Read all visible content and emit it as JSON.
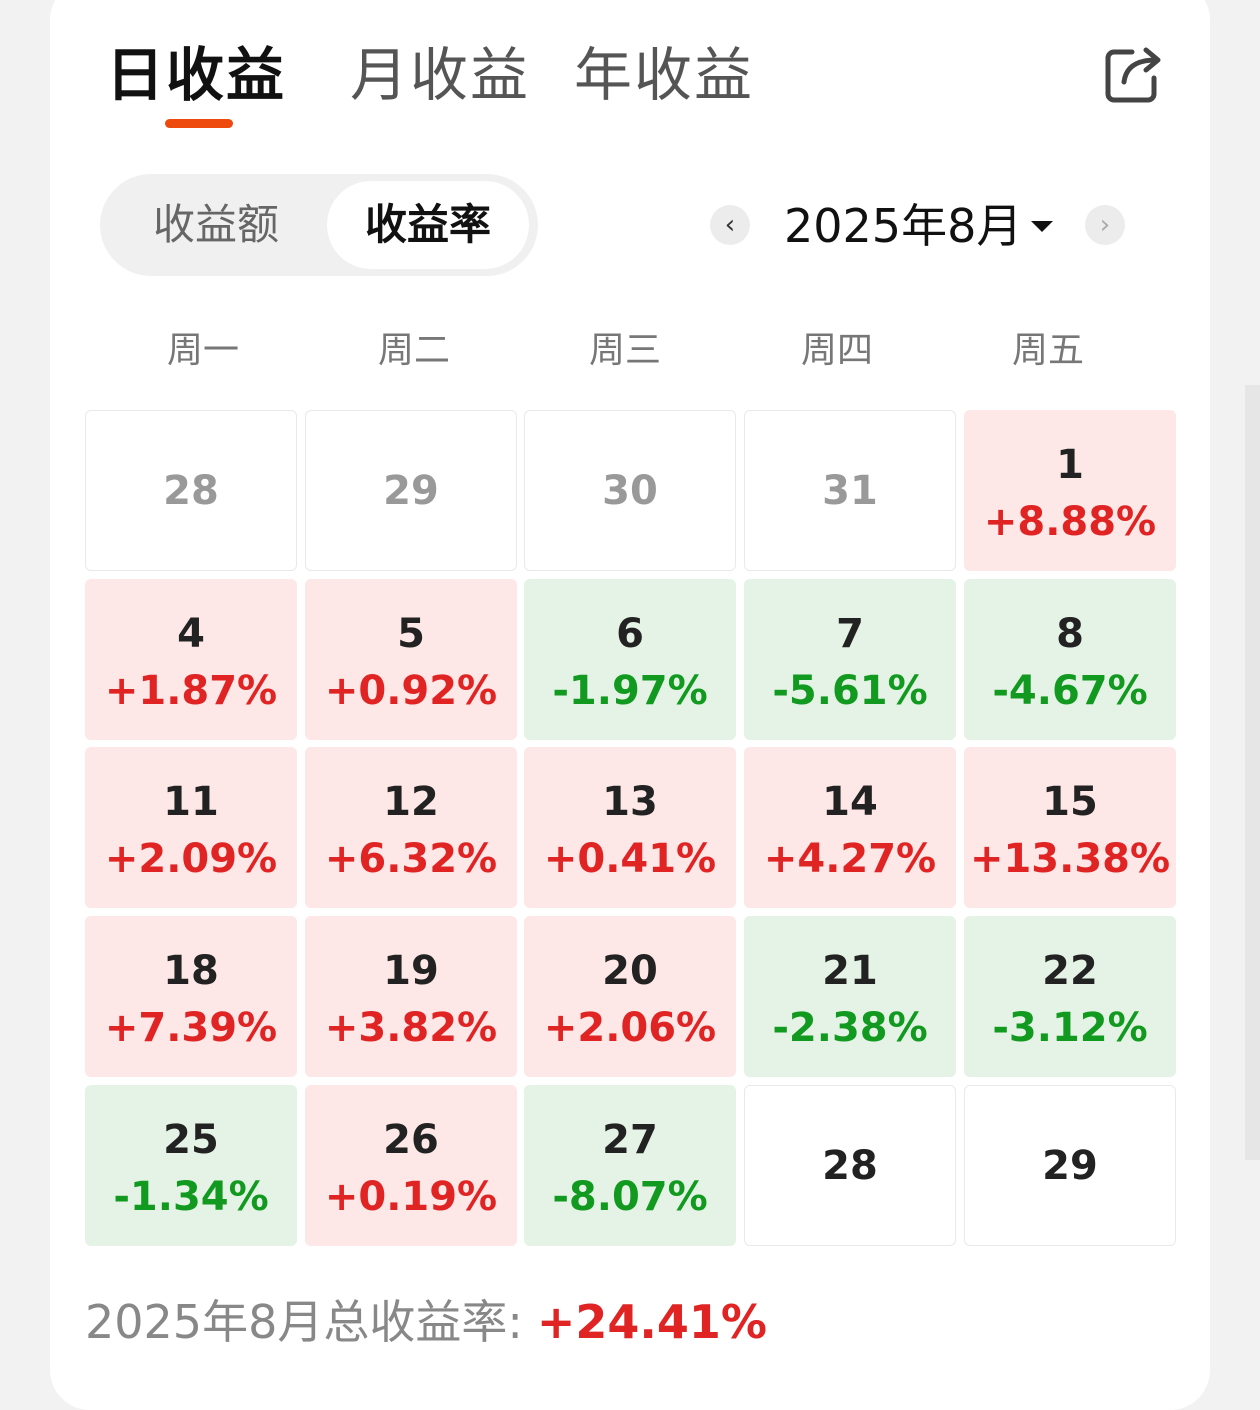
{
  "tabs": [
    {
      "label": "日收益",
      "active": true
    },
    {
      "label": "月收益",
      "active": false
    },
    {
      "label": "年收益",
      "active": false
    }
  ],
  "segment": {
    "amount_label": "收益额",
    "rate_label": "收益率",
    "selected": "收益率"
  },
  "month_picker": {
    "label": "2025年8月",
    "prev_icon": "chevron-left-icon",
    "next_icon": "chevron-right-icon"
  },
  "weekdays": [
    "周一",
    "周二",
    "周三",
    "周四",
    "周五"
  ],
  "calendar": [
    [
      {
        "day": "28",
        "rate": "",
        "type": "other"
      },
      {
        "day": "29",
        "rate": "",
        "type": "other"
      },
      {
        "day": "30",
        "rate": "",
        "type": "other"
      },
      {
        "day": "31",
        "rate": "",
        "type": "other"
      },
      {
        "day": "1",
        "rate": "+8.88%",
        "type": "up"
      }
    ],
    [
      {
        "day": "4",
        "rate": "+1.87%",
        "type": "up"
      },
      {
        "day": "5",
        "rate": "+0.92%",
        "type": "up"
      },
      {
        "day": "6",
        "rate": "-1.97%",
        "type": "down"
      },
      {
        "day": "7",
        "rate": "-5.61%",
        "type": "down"
      },
      {
        "day": "8",
        "rate": "-4.67%",
        "type": "down"
      }
    ],
    [
      {
        "day": "11",
        "rate": "+2.09%",
        "type": "up"
      },
      {
        "day": "12",
        "rate": "+6.32%",
        "type": "up"
      },
      {
        "day": "13",
        "rate": "+0.41%",
        "type": "up"
      },
      {
        "day": "14",
        "rate": "+4.27%",
        "type": "up"
      },
      {
        "day": "15",
        "rate": "+13.38%",
        "type": "up"
      }
    ],
    [
      {
        "day": "18",
        "rate": "+7.39%",
        "type": "up"
      },
      {
        "day": "19",
        "rate": "+3.82%",
        "type": "up"
      },
      {
        "day": "20",
        "rate": "+2.06%",
        "type": "up"
      },
      {
        "day": "21",
        "rate": "-2.38%",
        "type": "down"
      },
      {
        "day": "22",
        "rate": "-3.12%",
        "type": "down"
      }
    ],
    [
      {
        "day": "25",
        "rate": "-1.34%",
        "type": "down"
      },
      {
        "day": "26",
        "rate": "+0.19%",
        "type": "up"
      },
      {
        "day": "27",
        "rate": "-8.07%",
        "type": "down"
      },
      {
        "day": "28",
        "rate": "",
        "type": "nodata"
      },
      {
        "day": "29",
        "rate": "",
        "type": "nodata"
      }
    ]
  ],
  "footer": {
    "label": "2025年8月总收益率:",
    "total": "+24.41%"
  },
  "colors": {
    "accent": "#ee4a0e",
    "up": "#e02424",
    "down": "#119a1f",
    "up_bg": "#fde7e7",
    "down_bg": "#e4f3e5"
  },
  "icons": {
    "share": "share-icon"
  }
}
